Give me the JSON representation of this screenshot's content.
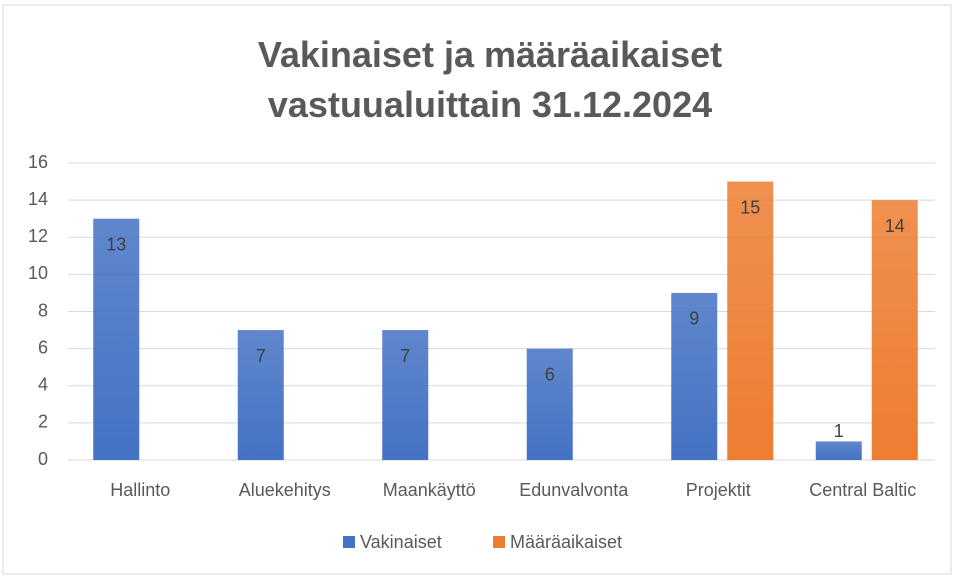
{
  "chart_data": {
    "type": "bar",
    "title": "Vakinaiset ja määräaikaiset vastuualuittain 31.12.2024",
    "categories": [
      "Hallinto",
      "Aluekehitys",
      "Maankäyttö",
      "Edunvalvonta",
      "Projektit",
      "Central Baltic"
    ],
    "series": [
      {
        "name": "Vakinaiset",
        "color": "#4472c4",
        "values": [
          13,
          7,
          7,
          6,
          9,
          1
        ]
      },
      {
        "name": "Määräaikaiset",
        "color": "#ed7d31",
        "values": [
          null,
          null,
          null,
          null,
          15,
          14
        ]
      }
    ],
    "ylim": [
      0,
      16
    ],
    "yticks": [
      0,
      2,
      4,
      6,
      8,
      10,
      12,
      14,
      16
    ],
    "grid": true,
    "legend": "bottom"
  }
}
